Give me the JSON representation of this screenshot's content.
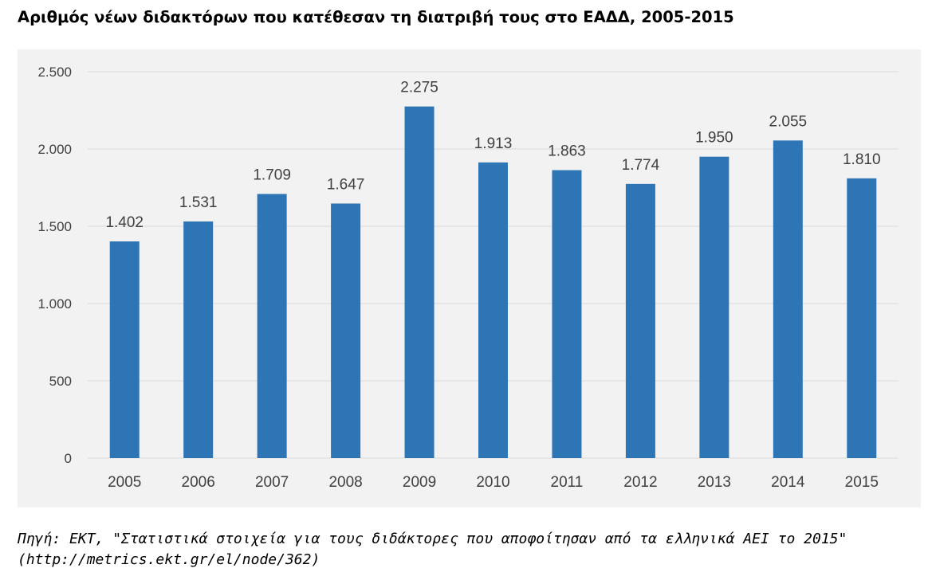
{
  "title": "Αριθμός νέων διδακτόρων που κατέθεσαν τη διατριβή τους στο ΕΑΔΔ, 2005-2015",
  "source": {
    "line1": "Πηγή: ΕΚΤ, \"Στατιστικά στοιχεία για τους διδάκτορες που αποφοίτησαν από τα ελληνικά ΑΕΙ το 2015\"",
    "line2": "(http://metrics.ekt.gr/el/node/362)"
  },
  "colors": {
    "bar": "#2e75b6",
    "grid": "#d9d9d9",
    "panel": "#f2f2f2",
    "text": "#404040"
  },
  "chart_data": {
    "type": "bar",
    "title": "",
    "xlabel": "",
    "ylabel": "",
    "categories": [
      "2005",
      "2006",
      "2007",
      "2008",
      "2009",
      "2010",
      "2011",
      "2012",
      "2013",
      "2014",
      "2015"
    ],
    "values": [
      1402,
      1531,
      1709,
      1647,
      2275,
      1913,
      1863,
      1774,
      1950,
      2055,
      1810
    ],
    "value_labels": [
      "1.402",
      "1.531",
      "1.709",
      "1.647",
      "2.275",
      "1.913",
      "1.863",
      "1.774",
      "1.950",
      "2.055",
      "1.810"
    ],
    "yticks": [
      0,
      500,
      1000,
      1500,
      2000,
      2500
    ],
    "ytick_labels": [
      "0",
      "500",
      "1.000",
      "1.500",
      "2.000",
      "2.500"
    ],
    "ylim": [
      0,
      2500
    ],
    "grid": true,
    "legend": "none"
  }
}
